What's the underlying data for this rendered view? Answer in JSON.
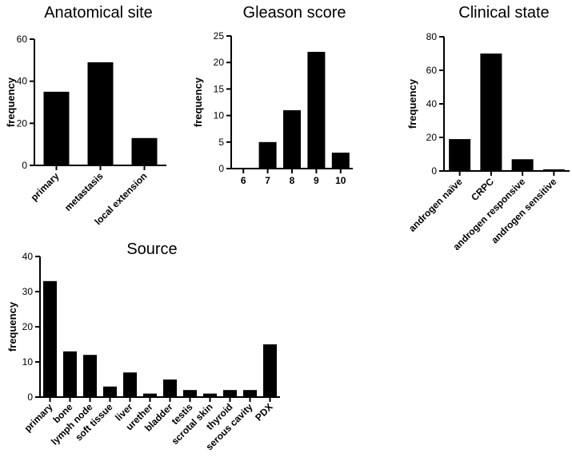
{
  "chart_data": [
    {
      "type": "bar",
      "title": "Anatomical site",
      "ylabel": "frequency",
      "categories": [
        "primary",
        "metastasis",
        "local extension"
      ],
      "values": [
        35,
        49,
        13
      ],
      "ylim": [
        0,
        60
      ],
      "yticks": [
        0,
        20,
        40,
        60
      ]
    },
    {
      "type": "bar",
      "title": "Gleason score",
      "ylabel": "frequency",
      "categories": [
        "6",
        "7",
        "8",
        "9",
        "10"
      ],
      "values": [
        0,
        5,
        11,
        22,
        3
      ],
      "ylim": [
        0,
        25
      ],
      "yticks": [
        0,
        5,
        10,
        15,
        20,
        25
      ]
    },
    {
      "type": "bar",
      "title": "Clinical state",
      "ylabel": "frequency",
      "categories": [
        "androgen naïve",
        "CRPC",
        "androgen responsive",
        "androgen sensitive"
      ],
      "values": [
        19,
        70,
        7,
        1
      ],
      "ylim": [
        0,
        80
      ],
      "yticks": [
        0,
        20,
        40,
        60,
        80
      ]
    },
    {
      "type": "bar",
      "title": "Source",
      "ylabel": "frequency",
      "categories": [
        "primary",
        "bone",
        "lymph node",
        "soft tissue",
        "liver",
        "urether",
        "bladder",
        "testis",
        "scrotal skin",
        "thyroid",
        "serous cavity",
        "PDX"
      ],
      "values": [
        33,
        13,
        12,
        3,
        7,
        1,
        5,
        2,
        1,
        2,
        2,
        15
      ],
      "ylim": [
        0,
        40
      ],
      "yticks": [
        0,
        10,
        20,
        30,
        40
      ]
    }
  ]
}
